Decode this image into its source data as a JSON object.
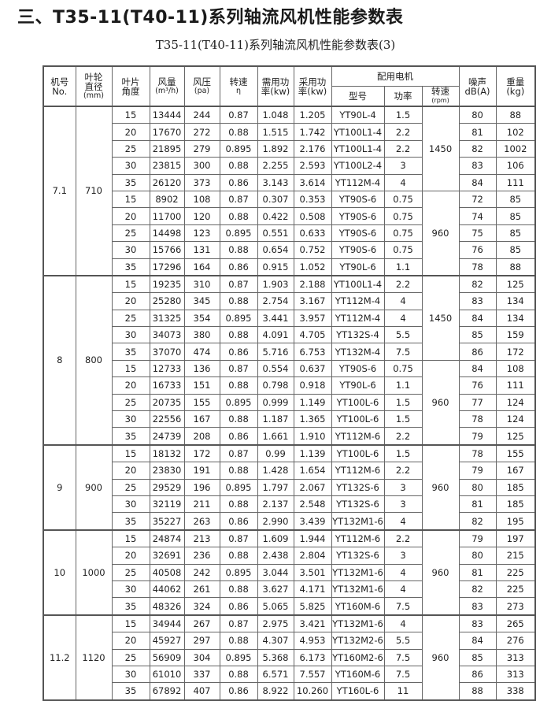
{
  "title": "三、T35-11(T40-11)系列轴流风机性能参数表",
  "subtitle": "T35-11(T40-11)系列轴流风机性能参数表(3)",
  "headers": {
    "machine_no": [
      "机号",
      "No."
    ],
    "impeller_dia": [
      "叶轮",
      "直径",
      "(mm)"
    ],
    "blade_angle": [
      "叶片",
      "角度"
    ],
    "air_volume": [
      "风量",
      "(m³/h)"
    ],
    "pressure": [
      "风压",
      "(pa)"
    ],
    "efficiency": [
      "转速",
      "η"
    ],
    "required_power": [
      "需用功",
      "率(kw)"
    ],
    "adopted_power": [
      "采用功",
      "率(kw)"
    ],
    "motor_group": "配用电机",
    "motor_model": "型号",
    "motor_power": "功率",
    "motor_speed": [
      "转速",
      "(rpm)"
    ],
    "noise": [
      "噪声",
      "dB(A)"
    ],
    "weight": [
      "重量",
      "(kg)"
    ]
  },
  "groups": [
    {
      "no": "7.1",
      "dia": "710",
      "speed_blocks": [
        {
          "rpm": "1450",
          "rows": 5
        },
        {
          "rpm": "960",
          "rows": 5
        }
      ],
      "rows": [
        [
          "15",
          "13444",
          "244",
          "0.87",
          "1.048",
          "1.205",
          "YT90L-4",
          "1.5",
          "80",
          "88"
        ],
        [
          "20",
          "17670",
          "272",
          "0.88",
          "1.515",
          "1.742",
          "YT100L1-4",
          "2.2",
          "81",
          "102"
        ],
        [
          "25",
          "21895",
          "279",
          "0.895",
          "1.892",
          "2.176",
          "YT100L1-4",
          "2.2",
          "82",
          "1002"
        ],
        [
          "30",
          "23815",
          "300",
          "0.88",
          "2.255",
          "2.593",
          "YT100L2-4",
          "3",
          "83",
          "106"
        ],
        [
          "35",
          "26120",
          "373",
          "0.86",
          "3.143",
          "3.614",
          "YT112M-4",
          "4",
          "84",
          "111"
        ],
        [
          "15",
          "8902",
          "108",
          "0.87",
          "0.307",
          "0.353",
          "YT90S-6",
          "0.75",
          "72",
          "85"
        ],
        [
          "20",
          "11700",
          "120",
          "0.88",
          "0.422",
          "0.508",
          "YT90S-6",
          "0.75",
          "74",
          "85"
        ],
        [
          "25",
          "14498",
          "123",
          "0.895",
          "0.551",
          "0.633",
          "YT90S-6",
          "0.75",
          "75",
          "85"
        ],
        [
          "30",
          "15766",
          "131",
          "0.88",
          "0.654",
          "0.752",
          "YT90S-6",
          "0.75",
          "76",
          "85"
        ],
        [
          "35",
          "17296",
          "164",
          "0.86",
          "0.915",
          "1.052",
          "YT90L-6",
          "1.1",
          "78",
          "88"
        ]
      ]
    },
    {
      "no": "8",
      "dia": "800",
      "speed_blocks": [
        {
          "rpm": "1450",
          "rows": 5
        },
        {
          "rpm": "960",
          "rows": 5
        }
      ],
      "rows": [
        [
          "15",
          "19235",
          "310",
          "0.87",
          "1.903",
          "2.188",
          "YT100L1-4",
          "2.2",
          "82",
          "125"
        ],
        [
          "20",
          "25280",
          "345",
          "0.88",
          "2.754",
          "3.167",
          "YT112M-4",
          "4",
          "83",
          "134"
        ],
        [
          "25",
          "31325",
          "354",
          "0.895",
          "3.441",
          "3.957",
          "YT112M-4",
          "4",
          "84",
          "134"
        ],
        [
          "30",
          "34073",
          "380",
          "0.88",
          "4.091",
          "4.705",
          "YT132S-4",
          "5.5",
          "85",
          "159"
        ],
        [
          "35",
          "37070",
          "474",
          "0.86",
          "5.716",
          "6.753",
          "YT132M-4",
          "7.5",
          "86",
          "172"
        ],
        [
          "15",
          "12733",
          "136",
          "0.87",
          "0.554",
          "0.637",
          "YT90S-6",
          "0.75",
          "84",
          "108"
        ],
        [
          "20",
          "16733",
          "151",
          "0.88",
          "0.798",
          "0.918",
          "YT90L-6",
          "1.1",
          "76",
          "111"
        ],
        [
          "25",
          "20735",
          "155",
          "0.895",
          "0.999",
          "1.149",
          "YT100L-6",
          "1.5",
          "77",
          "124"
        ],
        [
          "30",
          "22556",
          "167",
          "0.88",
          "1.187",
          "1.365",
          "YT100L-6",
          "1.5",
          "78",
          "124"
        ],
        [
          "35",
          "24739",
          "208",
          "0.86",
          "1.661",
          "1.910",
          "YT112M-6",
          "2.2",
          "79",
          "125"
        ]
      ]
    },
    {
      "no": "9",
      "dia": "900",
      "speed_blocks": [
        {
          "rpm": "960",
          "rows": 5
        }
      ],
      "rows": [
        [
          "15",
          "18132",
          "172",
          "0.87",
          "0.99",
          "1.139",
          "YT100L-6",
          "1.5",
          "78",
          "155"
        ],
        [
          "20",
          "23830",
          "191",
          "0.88",
          "1.428",
          "1.654",
          "YT112M-6",
          "2.2",
          "79",
          "167"
        ],
        [
          "25",
          "29529",
          "196",
          "0.895",
          "1.797",
          "2.067",
          "YT132S-6",
          "3",
          "80",
          "185"
        ],
        [
          "30",
          "32119",
          "211",
          "0.88",
          "2.137",
          "2.548",
          "YT132S-6",
          "3",
          "81",
          "185"
        ],
        [
          "35",
          "35227",
          "263",
          "0.86",
          "2.990",
          "3.439",
          "YT132M1-6",
          "4",
          "82",
          "195"
        ]
      ]
    },
    {
      "no": "10",
      "dia": "1000",
      "speed_blocks": [
        {
          "rpm": "960",
          "rows": 5
        }
      ],
      "rows": [
        [
          "15",
          "24874",
          "213",
          "0.87",
          "1.609",
          "1.944",
          "YT112M-6",
          "2.2",
          "79",
          "197"
        ],
        [
          "20",
          "32691",
          "236",
          "0.88",
          "2.438",
          "2.804",
          "YT132S-6",
          "3",
          "80",
          "215"
        ],
        [
          "25",
          "40508",
          "242",
          "0.895",
          "3.044",
          "3.501",
          "YT132M1-6",
          "4",
          "81",
          "225"
        ],
        [
          "30",
          "44062",
          "261",
          "0.88",
          "3.627",
          "4.171",
          "YT132M1-6",
          "4",
          "82",
          "225"
        ],
        [
          "35",
          "48326",
          "324",
          "0.86",
          "5.065",
          "5.825",
          "YT160M-6",
          "7.5",
          "83",
          "273"
        ]
      ]
    },
    {
      "no": "11.2",
      "dia": "1120",
      "speed_blocks": [
        {
          "rpm": "960",
          "rows": 5
        }
      ],
      "rows": [
        [
          "15",
          "34944",
          "267",
          "0.87",
          "2.975",
          "3.421",
          "YT132M1-6",
          "4",
          "83",
          "265"
        ],
        [
          "20",
          "45927",
          "297",
          "0.88",
          "4.307",
          "4.953",
          "YT132M2-6",
          "5.5",
          "84",
          "276"
        ],
        [
          "25",
          "56909",
          "304",
          "0.895",
          "5.368",
          "6.173",
          "YT160M2-6",
          "7.5",
          "85",
          "313"
        ],
        [
          "30",
          "61010",
          "337",
          "0.88",
          "6.571",
          "7.557",
          "YT160M-6",
          "7.5",
          "86",
          "313"
        ],
        [
          "35",
          "67892",
          "407",
          "0.86",
          "8.922",
          "10.260",
          "YT160L-6",
          "11",
          "88",
          "338"
        ]
      ]
    }
  ]
}
